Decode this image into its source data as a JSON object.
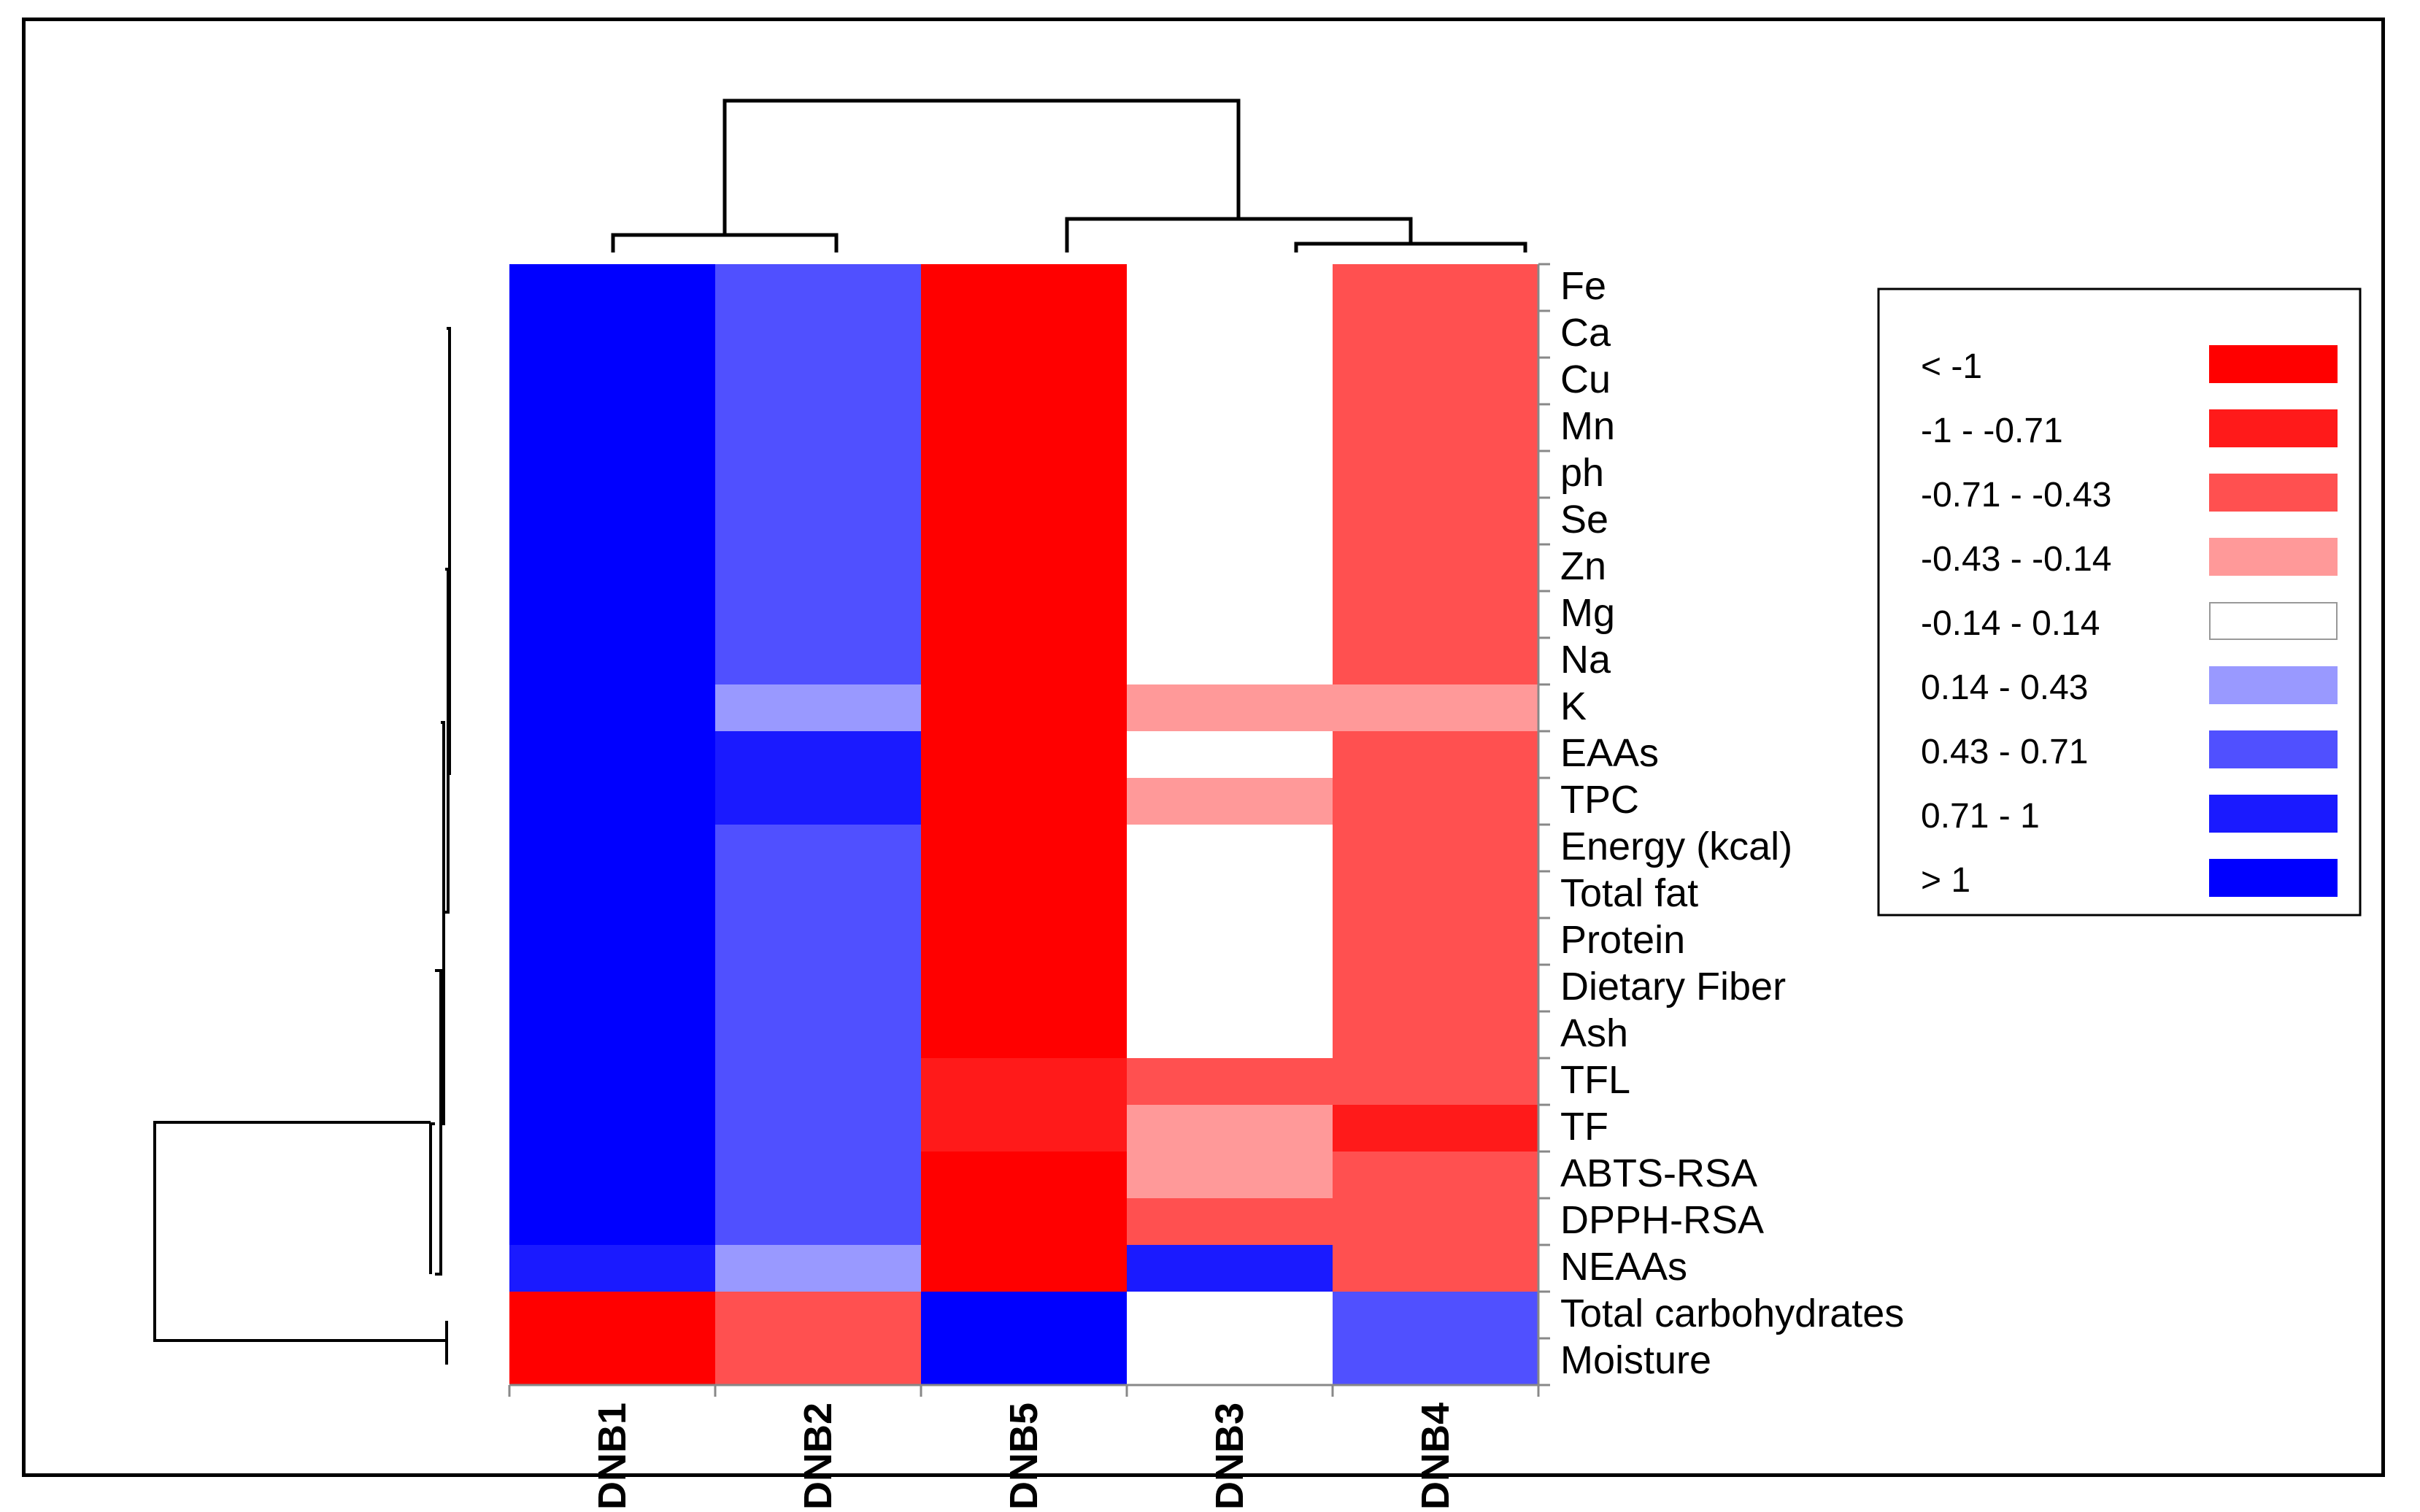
{
  "chart_data": {
    "type": "heatmap",
    "columns": [
      "DNB1",
      "DNB2",
      "DNB5",
      "DNB3",
      "DNB4"
    ],
    "rows": [
      "Fe",
      "Ca",
      "Cu",
      "Mn",
      "ph",
      "Se",
      "Zn",
      "Mg",
      "Na",
      "K",
      "EAAs",
      "TPC",
      "Energy (kcal)",
      "Total fat",
      "Protein",
      "Dietary Fiber",
      "Ash",
      "TFL",
      "TF",
      "ABTS-RSA",
      "DPPH-RSA",
      "NEAAs",
      "Total carbohydrates",
      "Moisture"
    ],
    "bins": [
      {
        "label": "< -1",
        "color": "#ff0000"
      },
      {
        "label": "-1 - -0.71",
        "color": "#ff1a1a"
      },
      {
        "label": "-0.71 - -0.43",
        "color": "#ff5050"
      },
      {
        "label": "-0.43 - -0.14",
        "color": "#ff9999"
      },
      {
        "label": "-0.14 - 0.14",
        "color": "#ffffff"
      },
      {
        "label": "0.14 - 0.43",
        "color": "#9999ff"
      },
      {
        "label": "0.43 - 0.71",
        "color": "#5050ff"
      },
      {
        "label": "0.71 - 1",
        "color": "#1a1aff"
      },
      {
        "label": "> 1",
        "color": "#0000ff"
      }
    ],
    "cell_bins": [
      [
        8,
        6,
        0,
        4,
        2
      ],
      [
        8,
        6,
        0,
        4,
        2
      ],
      [
        8,
        6,
        0,
        4,
        2
      ],
      [
        8,
        6,
        0,
        4,
        2
      ],
      [
        8,
        6,
        0,
        4,
        2
      ],
      [
        8,
        6,
        0,
        4,
        2
      ],
      [
        8,
        6,
        0,
        4,
        2
      ],
      [
        8,
        6,
        0,
        4,
        2
      ],
      [
        8,
        6,
        0,
        4,
        2
      ],
      [
        8,
        5,
        0,
        3,
        3
      ],
      [
        8,
        7,
        0,
        4,
        2
      ],
      [
        8,
        7,
        0,
        3,
        2
      ],
      [
        8,
        6,
        0,
        4,
        2
      ],
      [
        8,
        6,
        0,
        4,
        2
      ],
      [
        8,
        6,
        0,
        4,
        2
      ],
      [
        8,
        6,
        0,
        4,
        2
      ],
      [
        8,
        6,
        0,
        4,
        2
      ],
      [
        8,
        6,
        1,
        2,
        2
      ],
      [
        8,
        6,
        1,
        3,
        1
      ],
      [
        8,
        6,
        0,
        3,
        2
      ],
      [
        8,
        6,
        0,
        2,
        2
      ],
      [
        7,
        5,
        0,
        7,
        2
      ],
      [
        0,
        2,
        8,
        4,
        6
      ],
      [
        0,
        2,
        8,
        4,
        6
      ]
    ],
    "legend_position": "right",
    "dendrograms": [
      "columns",
      "rows"
    ]
  }
}
